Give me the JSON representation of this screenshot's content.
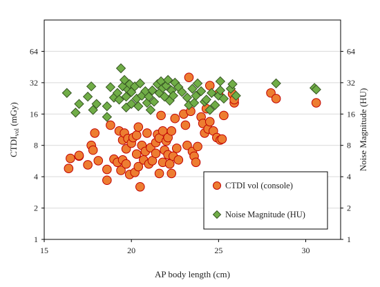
{
  "chart_data": {
    "type": "scatter",
    "xlabel": "AP body length (cm)",
    "ylabel_left": "CTDI",
    "ylabel_left_sub": "vol",
    "ylabel_left_unit": " (mGy)",
    "ylabel_right": "Noise Magnitude (HU)",
    "xlim": [
      15,
      32
    ],
    "ylim": [
      1,
      128
    ],
    "yscale": "log2",
    "xticks": [
      15,
      20,
      25,
      30
    ],
    "yticks": [
      1,
      2,
      4,
      8,
      16,
      32,
      64
    ],
    "grid": "horizontal",
    "legend_position": "bottom-right",
    "series": [
      {
        "name": "CTDI vol (console)",
        "color": "#ED7D31",
        "edge": "#C00000",
        "marker": "circle",
        "points": [
          [
            16.4,
            4.8
          ],
          [
            16.5,
            6.0
          ],
          [
            17.0,
            6.3
          ],
          [
            17.0,
            6.4
          ],
          [
            17.5,
            5.2
          ],
          [
            17.7,
            8.0
          ],
          [
            17.8,
            7.2
          ],
          [
            17.9,
            10.5
          ],
          [
            18.1,
            5.7
          ],
          [
            18.6,
            4.7
          ],
          [
            18.6,
            3.7
          ],
          [
            18.8,
            12.5
          ],
          [
            19.0,
            5.9
          ],
          [
            19.2,
            5.5
          ],
          [
            19.3,
            11.0
          ],
          [
            19.4,
            4.6
          ],
          [
            19.5,
            9.0
          ],
          [
            19.5,
            5.8
          ],
          [
            19.6,
            10.5
          ],
          [
            19.7,
            5.3
          ],
          [
            19.7,
            7.4
          ],
          [
            19.8,
            9.3
          ],
          [
            19.9,
            4.2
          ],
          [
            20.0,
            8.4
          ],
          [
            20.1,
            9.5
          ],
          [
            20.2,
            4.4
          ],
          [
            20.3,
            6.6
          ],
          [
            20.3,
            10.0
          ],
          [
            20.4,
            12.0
          ],
          [
            20.4,
            5.0
          ],
          [
            20.5,
            3.2
          ],
          [
            20.6,
            8.0
          ],
          [
            20.7,
            5.8
          ],
          [
            20.8,
            7.0
          ],
          [
            20.9,
            10.5
          ],
          [
            21.0,
            5.3
          ],
          [
            21.1,
            7.6
          ],
          [
            21.2,
            5.7
          ],
          [
            21.4,
            6.7
          ],
          [
            21.4,
            8.5
          ],
          [
            21.5,
            10.2
          ],
          [
            21.6,
            9.4
          ],
          [
            21.6,
            4.3
          ],
          [
            21.7,
            15.5
          ],
          [
            21.8,
            5.5
          ],
          [
            21.8,
            11.0
          ],
          [
            21.9,
            7.2
          ],
          [
            22.0,
            8.8
          ],
          [
            22.1,
            6.5
          ],
          [
            22.1,
            9.5
          ],
          [
            22.2,
            5.3
          ],
          [
            22.3,
            4.3
          ],
          [
            22.3,
            11.0
          ],
          [
            22.4,
            6.3
          ],
          [
            22.5,
            14.5
          ],
          [
            22.6,
            7.5
          ],
          [
            22.7,
            5.8
          ],
          [
            23.0,
            16.0
          ],
          [
            23.1,
            12.5
          ],
          [
            23.2,
            8.0
          ],
          [
            23.3,
            36.0
          ],
          [
            23.4,
            17.0
          ],
          [
            23.5,
            7.0
          ],
          [
            23.6,
            6.3
          ],
          [
            23.7,
            5.5
          ],
          [
            23.8,
            7.8
          ],
          [
            24.0,
            15.0
          ],
          [
            24.1,
            13.0
          ],
          [
            24.2,
            10.5
          ],
          [
            24.3,
            18.0
          ],
          [
            24.4,
            11.5
          ],
          [
            24.5,
            13.5
          ],
          [
            24.5,
            30.0
          ],
          [
            24.7,
            11.0
          ],
          [
            24.9,
            9.5
          ],
          [
            25.0,
            25.0
          ],
          [
            25.1,
            9.0
          ],
          [
            25.2,
            9.2
          ],
          [
            25.3,
            15.5
          ],
          [
            25.8,
            25.0
          ],
          [
            25.9,
            20.5
          ],
          [
            25.9,
            22.0
          ],
          [
            28.0,
            25.5
          ],
          [
            28.3,
            22.5
          ],
          [
            30.6,
            20.5
          ]
        ]
      },
      {
        "name": "Noise Magnitude (HU)",
        "color": "#70AD47",
        "edge": "#375623",
        "marker": "diamond",
        "points": [
          [
            16.3,
            25.5
          ],
          [
            16.8,
            16.5
          ],
          [
            17.0,
            20.0
          ],
          [
            17.5,
            23.5
          ],
          [
            17.7,
            29.5
          ],
          [
            17.8,
            17.5
          ],
          [
            18.0,
            20.0
          ],
          [
            18.6,
            19.0
          ],
          [
            18.6,
            15.0
          ],
          [
            18.8,
            29.0
          ],
          [
            19.0,
            23.0
          ],
          [
            19.2,
            25.5
          ],
          [
            19.3,
            22.0
          ],
          [
            19.4,
            44.0
          ],
          [
            19.5,
            29.5
          ],
          [
            19.6,
            34.0
          ],
          [
            19.7,
            18.5
          ],
          [
            19.7,
            23.5
          ],
          [
            19.8,
            27.5
          ],
          [
            19.9,
            31.0
          ],
          [
            20.0,
            26.0
          ],
          [
            20.0,
            20.0
          ],
          [
            20.2,
            29.5
          ],
          [
            20.3,
            22.5
          ],
          [
            20.4,
            19.0
          ],
          [
            20.5,
            31.5
          ],
          [
            20.6,
            24.0
          ],
          [
            20.8,
            26.5
          ],
          [
            20.9,
            20.5
          ],
          [
            21.0,
            23.5
          ],
          [
            21.1,
            17.5
          ],
          [
            21.2,
            27.0
          ],
          [
            21.3,
            21.0
          ],
          [
            21.5,
            31.0
          ],
          [
            21.6,
            25.5
          ],
          [
            21.7,
            33.0
          ],
          [
            21.8,
            28.5
          ],
          [
            21.9,
            23.5
          ],
          [
            22.0,
            30.0
          ],
          [
            22.1,
            34.0
          ],
          [
            22.2,
            21.5
          ],
          [
            22.3,
            27.0
          ],
          [
            22.4,
            24.0
          ],
          [
            22.5,
            32.0
          ],
          [
            22.7,
            29.0
          ],
          [
            22.9,
            26.0
          ],
          [
            23.2,
            23.0
          ],
          [
            23.3,
            19.5
          ],
          [
            23.5,
            28.0
          ],
          [
            23.6,
            20.5
          ],
          [
            23.7,
            24.0
          ],
          [
            23.8,
            31.5
          ],
          [
            24.0,
            26.5
          ],
          [
            24.2,
            21.0
          ],
          [
            24.3,
            22.0
          ],
          [
            24.5,
            17.5
          ],
          [
            24.6,
            25.5
          ],
          [
            24.8,
            19.5
          ],
          [
            25.0,
            24.0
          ],
          [
            25.1,
            27.0
          ],
          [
            25.1,
            33.0
          ],
          [
            25.3,
            22.5
          ],
          [
            25.7,
            28.0
          ],
          [
            25.8,
            31.0
          ],
          [
            26.0,
            24.0
          ],
          [
            28.3,
            31.5
          ],
          [
            30.5,
            28.5
          ],
          [
            30.6,
            27.5
          ]
        ]
      }
    ]
  }
}
